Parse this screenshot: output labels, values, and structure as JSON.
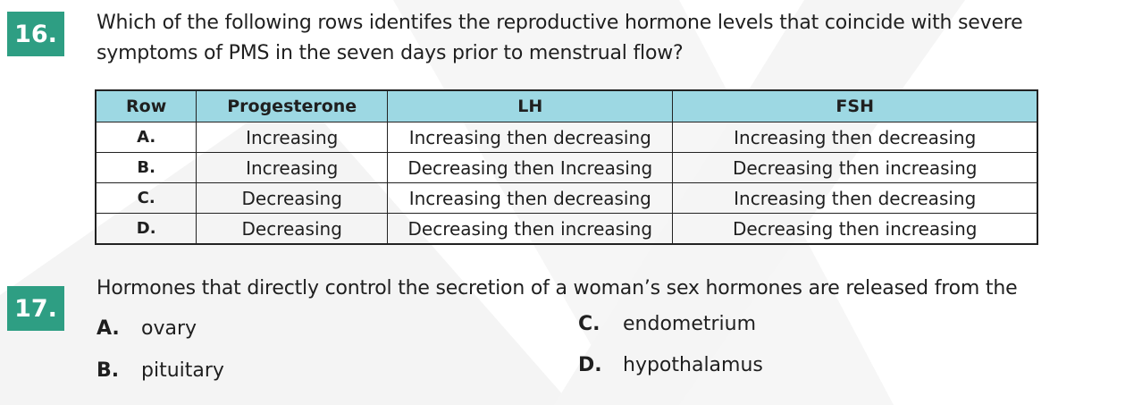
{
  "q16": {
    "number": "16.",
    "text_line1": "Which of the following rows identifes the reproductive hormone levels that coincide with severe",
    "text_line2": "symptoms of PMS in the seven days prior to menstrual flow?",
    "table": {
      "headers": [
        "Row",
        "Progesterone",
        "LH",
        "FSH"
      ],
      "rows": [
        [
          "A.",
          "Increasing",
          "Increasing then decreasing",
          "Increasing then decreasing"
        ],
        [
          "B.",
          "Increasing",
          "Decreasing then Increasing",
          "Decreasing then increasing"
        ],
        [
          "C.",
          "Decreasing",
          "Increasing then decreasing",
          "Increasing then decreasing"
        ],
        [
          "D.",
          "Decreasing",
          "Decreasing then increasing",
          "Decreasing then increasing"
        ]
      ]
    }
  },
  "q17": {
    "number": "17.",
    "text": "Hormones that directly control the secretion of a woman’s sex hormones are released from the",
    "options": [
      {
        "letter": "A.",
        "text": "ovary"
      },
      {
        "letter": "B.",
        "text": "pituitary"
      },
      {
        "letter": "C.",
        "text": "endometrium"
      },
      {
        "letter": "D.",
        "text": "hypothalamus"
      }
    ]
  },
  "colors": {
    "number_badge": "#2e9e83",
    "table_header": "#9dd8e3",
    "watermark": "#f3f3f3"
  }
}
